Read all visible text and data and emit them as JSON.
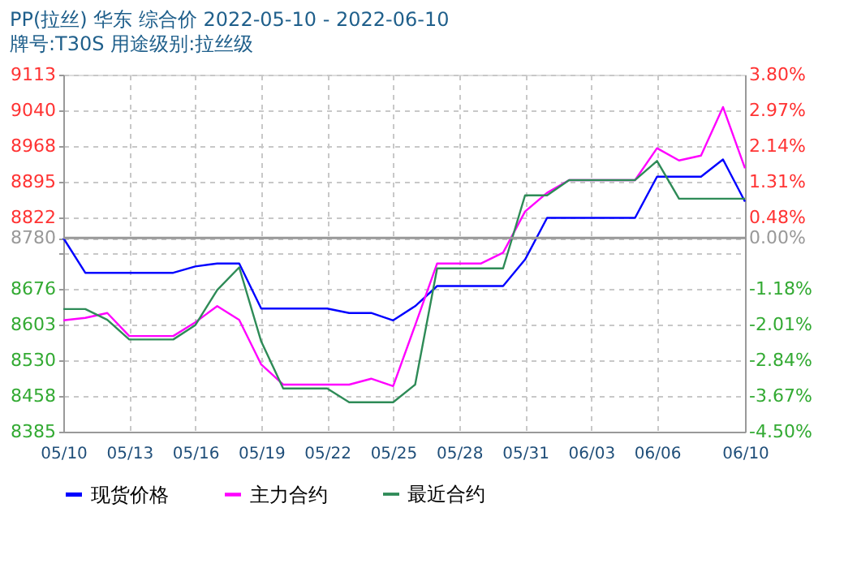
{
  "chart_data": {
    "type": "line",
    "title": "PP(拉丝) 华东 综合价 2022-05-10 - 2022-06-10",
    "subtitle": "牌号:T30S 用途级别:拉丝级",
    "x": [
      "2022-05-10",
      "2022-05-11",
      "2022-05-12",
      "2022-05-13",
      "2022-05-14",
      "2022-05-15",
      "2022-05-16",
      "2022-05-17",
      "2022-05-18",
      "2022-05-19",
      "2022-05-20",
      "2022-05-21",
      "2022-05-22",
      "2022-05-23",
      "2022-05-24",
      "2022-05-25",
      "2022-05-26",
      "2022-05-27",
      "2022-05-28",
      "2022-05-29",
      "2022-05-30",
      "2022-05-31",
      "2022-06-01",
      "2022-06-02",
      "2022-06-03",
      "2022-06-04",
      "2022-06-05",
      "2022-06-06",
      "2022-06-07",
      "2022-06-08",
      "2022-06-09",
      "2022-06-10"
    ],
    "series": [
      {
        "name": "现货价格",
        "color": "#0000ff",
        "values": [
          8780,
          8709,
          8709,
          8709,
          8709,
          8709,
          8722,
          8728,
          8728,
          8636,
          8636,
          8636,
          8636,
          8627,
          8627,
          8612,
          8641,
          8682,
          8682,
          8682,
          8682,
          8736,
          8821,
          8821,
          8821,
          8821,
          8821,
          8905,
          8905,
          8905,
          8940,
          8854
        ]
      },
      {
        "name": "主力合约",
        "color": "#ff00ff",
        "values": [
          8612,
          8617,
          8627,
          8580,
          8580,
          8580,
          8608,
          8641,
          8613,
          8522,
          8481,
          8481,
          8481,
          8481,
          8493,
          8478,
          8602,
          8728,
          8728,
          8728,
          8750,
          8834,
          8872,
          8898,
          8898,
          8898,
          8898,
          8963,
          8938,
          8948,
          9047,
          8922
        ]
      },
      {
        "name": "最近合约",
        "color": "#2e8b57",
        "values": [
          8635,
          8635,
          8613,
          8573,
          8573,
          8573,
          8602,
          8674,
          8720,
          8569,
          8473,
          8473,
          8473,
          8445,
          8445,
          8445,
          8481,
          8718,
          8718,
          8718,
          8718,
          8867,
          8867,
          8898,
          8898,
          8898,
          8898,
          8937,
          8860,
          8860,
          8860,
          8860
        ]
      }
    ],
    "xlim": [
      "2022-05-10",
      "2022-06-10"
    ],
    "xticks": [
      {
        "value": "2022-05-10",
        "label": "05/10"
      },
      {
        "value": "2022-05-13",
        "label": "05/13"
      },
      {
        "value": "2022-05-16",
        "label": "05/16"
      },
      {
        "value": "2022-05-19",
        "label": "05/19"
      },
      {
        "value": "2022-05-22",
        "label": "05/22"
      },
      {
        "value": "2022-05-25",
        "label": "05/25"
      },
      {
        "value": "2022-05-28",
        "label": "05/28"
      },
      {
        "value": "2022-05-31",
        "label": "05/31"
      },
      {
        "value": "2022-06-03",
        "label": "06/03"
      },
      {
        "value": "2022-06-06",
        "label": "06/06"
      },
      {
        "value": "2022-06-10",
        "label": "06/10"
      }
    ],
    "ylim": [
      8385,
      9113
    ],
    "yticks": [
      8385,
      8458,
      8530,
      8603,
      8676,
      {
        "value": 8749,
        "label": null
      },
      8780,
      8822,
      8895,
      8968,
      9040,
      9113
    ],
    "y2lim": [
      -4.5,
      3.8
    ],
    "y2ticks": [
      {
        "value": -4.5,
        "label": "-4.50%"
      },
      {
        "value": -3.67,
        "label": "-3.67%"
      },
      {
        "value": -2.84,
        "label": "-2.84%"
      },
      {
        "value": -2.01,
        "label": "-2.01%"
      },
      {
        "value": -1.18,
        "label": "-1.18%"
      },
      {
        "value": 0,
        "label": "0.00%"
      },
      {
        "value": 0.48,
        "label": "0.48%"
      },
      {
        "value": 1.31,
        "label": "1.31%"
      },
      {
        "value": 2.14,
        "label": "2.14%"
      },
      {
        "value": 2.97,
        "label": "2.97%"
      },
      {
        "value": 3.8,
        "label": "3.80%"
      }
    ],
    "ref_lines": [
      {
        "axis": "y",
        "value": 8780,
        "color": "#999999"
      }
    ],
    "grid": true,
    "legend": "bottom",
    "line_style": "solid"
  }
}
